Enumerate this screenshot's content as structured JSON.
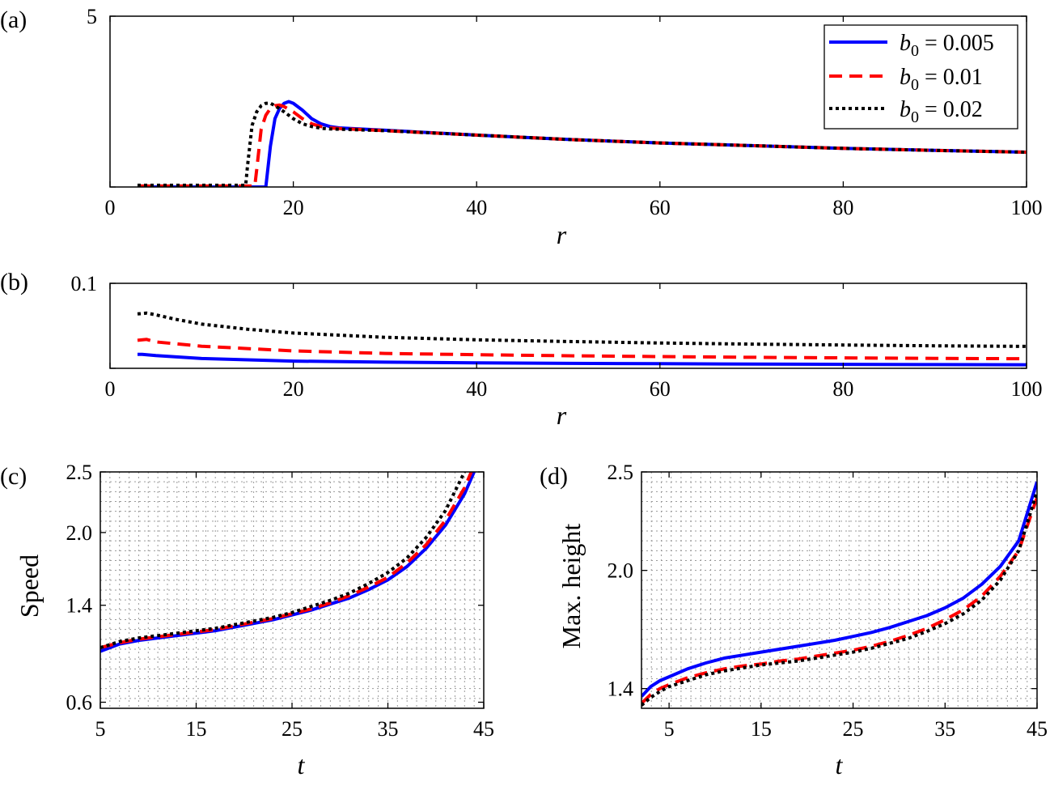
{
  "legend": {
    "entries": [
      {
        "var": "b",
        "sub": "0",
        "text": " = 0.005",
        "color": "#0000ff",
        "dash": "solid"
      },
      {
        "var": "b",
        "sub": "0",
        "text": " = 0.01",
        "color": "#ff0000",
        "dash": "dashed"
      },
      {
        "var": "b",
        "sub": "0",
        "text": " = 0.02",
        "color": "#000000",
        "dash": "dotted"
      }
    ]
  },
  "chart_data": [
    {
      "panel": "(a)",
      "type": "line",
      "xlabel": "r",
      "ylabel": "",
      "xlim": [
        0,
        100
      ],
      "ylim": [
        0,
        5
      ],
      "xticks": [
        0,
        20,
        40,
        60,
        80,
        100
      ],
      "yticks": [
        0,
        5
      ],
      "grid": false,
      "legend_position": "top-right",
      "series": [
        {
          "name": "b0 = 0.005",
          "color": "#0000ff",
          "x": [
            3,
            16.5,
            17,
            17.5,
            18,
            18.5,
            19,
            19.5,
            20,
            21,
            22,
            23,
            24,
            25,
            30,
            40,
            50,
            60,
            70,
            80,
            90,
            100
          ],
          "y": [
            0,
            0,
            0,
            1.2,
            2.0,
            2.3,
            2.45,
            2.5,
            2.45,
            2.25,
            2.0,
            1.85,
            1.77,
            1.73,
            1.66,
            1.52,
            1.39,
            1.29,
            1.21,
            1.13,
            1.07,
            1.02
          ]
        },
        {
          "name": "b0 = 0.01",
          "color": "#ff0000",
          "x": [
            3,
            15.8,
            16,
            16.5,
            17,
            17.5,
            18,
            18.5,
            19,
            20,
            21,
            22,
            23,
            24,
            25,
            30,
            40,
            50,
            60,
            70,
            80,
            90,
            100
          ],
          "y": [
            0.03,
            0.03,
            0.5,
            1.7,
            2.1,
            2.3,
            2.38,
            2.4,
            2.35,
            2.2,
            2.0,
            1.85,
            1.77,
            1.73,
            1.71,
            1.65,
            1.52,
            1.39,
            1.29,
            1.21,
            1.13,
            1.07,
            1.02
          ]
        },
        {
          "name": "b0 = 0.02",
          "color": "#000000",
          "x": [
            3,
            14.8,
            15,
            15.5,
            16,
            16.5,
            17,
            17.5,
            18,
            19,
            20,
            21,
            22,
            23,
            24,
            25,
            30,
            40,
            50,
            60,
            70,
            80,
            90,
            100
          ],
          "y": [
            0.05,
            0.05,
            0.6,
            1.8,
            2.2,
            2.38,
            2.45,
            2.45,
            2.38,
            2.2,
            2.0,
            1.85,
            1.77,
            1.72,
            1.7,
            1.69,
            1.65,
            1.52,
            1.39,
            1.29,
            1.21,
            1.13,
            1.07,
            1.02
          ]
        }
      ]
    },
    {
      "panel": "(b)",
      "type": "line",
      "xlabel": "r",
      "ylabel": "",
      "xlim": [
        0,
        100
      ],
      "ylim": [
        0,
        0.1
      ],
      "xticks": [
        0,
        20,
        40,
        60,
        80,
        100
      ],
      "yticks": [
        0,
        0.1
      ],
      "grid": false,
      "series": [
        {
          "name": "b0 = 0.005",
          "color": "#0000ff",
          "x": [
            3,
            3.5,
            5,
            10,
            20,
            30,
            40,
            50,
            60,
            70,
            80,
            90,
            100
          ],
          "y": [
            0.0165,
            0.0165,
            0.015,
            0.0115,
            0.0085,
            0.0072,
            0.0064,
            0.0058,
            0.0054,
            0.005,
            0.0047,
            0.0044,
            0.0042
          ]
        },
        {
          "name": "b0 = 0.01",
          "color": "#ff0000",
          "x": [
            3,
            4,
            5,
            10,
            20,
            30,
            40,
            50,
            60,
            70,
            80,
            90,
            100
          ],
          "y": [
            0.033,
            0.034,
            0.031,
            0.026,
            0.0205,
            0.0175,
            0.016,
            0.0148,
            0.0138,
            0.013,
            0.0123,
            0.0117,
            0.0112
          ]
        },
        {
          "name": "b0 = 0.02",
          "color": "#000000",
          "x": [
            3,
            4,
            5,
            7,
            10,
            15,
            20,
            30,
            40,
            50,
            60,
            70,
            80,
            90,
            100
          ],
          "y": [
            0.064,
            0.065,
            0.063,
            0.058,
            0.052,
            0.046,
            0.0415,
            0.0365,
            0.0335,
            0.0315,
            0.0298,
            0.0285,
            0.0274,
            0.0265,
            0.0258
          ]
        }
      ]
    },
    {
      "panel": "(c)",
      "type": "line",
      "xlabel": "t",
      "ylabel": "Speed",
      "xlim": [
        5,
        45
      ],
      "ylim": [
        0.55,
        2.5
      ],
      "xticks": [
        5,
        15,
        25,
        35,
        45
      ],
      "yticks": [
        0.6,
        1.4,
        2.0,
        2.5
      ],
      "ytick_labels": [
        "0.6",
        "1.4",
        "2.0",
        "2.5"
      ],
      "grid": true,
      "series": [
        {
          "name": "b0 = 0.005",
          "color": "#0000ff",
          "x": [
            5,
            7,
            9,
            11,
            13,
            15,
            17,
            19,
            21,
            23,
            25,
            27,
            29,
            31,
            33,
            35,
            37,
            39,
            41,
            43,
            44
          ],
          "y": [
            1.02,
            1.08,
            1.11,
            1.13,
            1.15,
            1.17,
            1.19,
            1.22,
            1.25,
            1.28,
            1.32,
            1.36,
            1.41,
            1.46,
            1.53,
            1.61,
            1.72,
            1.87,
            2.06,
            2.32,
            2.5
          ]
        },
        {
          "name": "b0 = 0.01",
          "color": "#ff0000",
          "x": [
            5,
            7,
            9,
            11,
            13,
            15,
            17,
            19,
            21,
            23,
            25,
            27,
            29,
            31,
            33,
            35,
            37,
            39,
            41,
            43,
            43.7
          ],
          "y": [
            1.05,
            1.09,
            1.12,
            1.14,
            1.16,
            1.18,
            1.2,
            1.23,
            1.26,
            1.29,
            1.33,
            1.37,
            1.42,
            1.48,
            1.55,
            1.63,
            1.75,
            1.9,
            2.1,
            2.37,
            2.5
          ]
        },
        {
          "name": "b0 = 0.02",
          "color": "#000000",
          "x": [
            5,
            7,
            9,
            11,
            13,
            15,
            17,
            19,
            21,
            23,
            25,
            27,
            29,
            31,
            33,
            35,
            37,
            39,
            41,
            43
          ],
          "y": [
            1.05,
            1.1,
            1.13,
            1.15,
            1.17,
            1.19,
            1.21,
            1.24,
            1.27,
            1.3,
            1.34,
            1.39,
            1.44,
            1.5,
            1.58,
            1.67,
            1.79,
            1.96,
            2.18,
            2.5
          ]
        }
      ]
    },
    {
      "panel": "(d)",
      "type": "line",
      "xlabel": "t",
      "ylabel": "Max. height",
      "xlim": [
        2,
        45
      ],
      "ylim": [
        1.3,
        2.5
      ],
      "xticks": [
        5,
        15,
        25,
        35,
        45
      ],
      "yticks": [
        1.4,
        2.0,
        2.5
      ],
      "ytick_labels": [
        "1.4",
        "2.0",
        "2.5"
      ],
      "grid": true,
      "series": [
        {
          "name": "b0 = 0.005",
          "color": "#0000ff",
          "x": [
            2,
            3,
            4,
            5,
            7,
            9,
            11,
            13,
            15,
            17,
            19,
            21,
            23,
            25,
            27,
            29,
            31,
            33,
            35,
            37,
            39,
            41,
            43,
            45
          ],
          "y": [
            1.36,
            1.41,
            1.44,
            1.46,
            1.5,
            1.53,
            1.555,
            1.57,
            1.585,
            1.6,
            1.615,
            1.63,
            1.645,
            1.665,
            1.685,
            1.71,
            1.74,
            1.77,
            1.81,
            1.86,
            1.93,
            2.02,
            2.15,
            2.45
          ]
        },
        {
          "name": "b0 = 0.01",
          "color": "#ff0000",
          "x": [
            2,
            3,
            4,
            5,
            7,
            9,
            11,
            13,
            15,
            17,
            19,
            21,
            23,
            25,
            27,
            29,
            31,
            33,
            35,
            37,
            39,
            41,
            43,
            45
          ],
          "y": [
            1.325,
            1.37,
            1.4,
            1.42,
            1.455,
            1.48,
            1.5,
            1.515,
            1.525,
            1.54,
            1.55,
            1.565,
            1.58,
            1.595,
            1.615,
            1.64,
            1.67,
            1.705,
            1.75,
            1.8,
            1.87,
            1.97,
            2.1,
            2.37
          ]
        },
        {
          "name": "b0 = 0.02",
          "color": "#000000",
          "x": [
            2,
            3,
            4,
            5,
            7,
            9,
            11,
            13,
            15,
            17,
            19,
            21,
            23,
            25,
            27,
            29,
            31,
            33,
            35,
            37,
            39,
            41,
            43,
            45
          ],
          "y": [
            1.315,
            1.355,
            1.385,
            1.41,
            1.44,
            1.47,
            1.49,
            1.505,
            1.52,
            1.53,
            1.54,
            1.555,
            1.57,
            1.585,
            1.605,
            1.63,
            1.655,
            1.69,
            1.73,
            1.78,
            1.85,
            1.95,
            2.1,
            2.4
          ]
        }
      ]
    }
  ]
}
